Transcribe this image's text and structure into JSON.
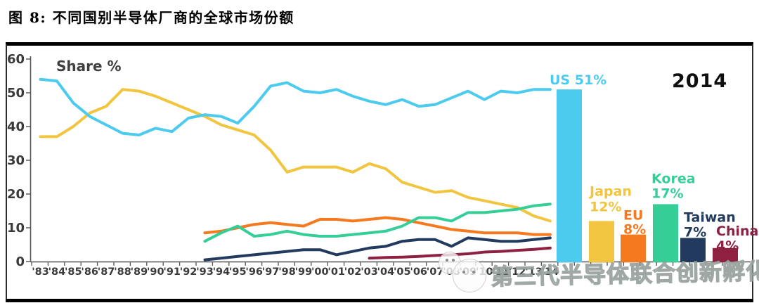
{
  "figure": {
    "caption": "图 8: 不同国别半导体厂商的全球市场份额",
    "watermark_text": "第三代半导体联合创新孵化中心"
  },
  "chart_data": {
    "type": "line+bar",
    "title": "不同国别半导体厂商的全球市场份额",
    "ylabel": "Share %",
    "xlabel": "",
    "annotation": "2014",
    "ylim": [
      0,
      60
    ],
    "yticks": [
      0,
      10,
      20,
      30,
      40,
      50,
      60
    ],
    "grid": false,
    "x_labels": [
      "'83",
      "'84",
      "'85",
      "'86",
      "'87",
      "'88",
      "'89",
      "'90",
      "'91",
      "'92",
      "'93",
      "'94",
      "'95",
      "'96",
      "'97",
      "'98",
      "'99",
      "'00",
      "'01",
      "'02",
      "'03",
      "'04",
      "'05",
      "'06",
      "'07",
      "'08",
      "'09",
      "'10",
      "'11",
      "'12",
      "'13",
      "'14"
    ],
    "series": [
      {
        "name": "US",
        "color": "#4CCBEE",
        "start_year": 1983,
        "values": [
          54,
          53.5,
          47,
          43,
          40.5,
          38,
          37.5,
          39.5,
          38.5,
          42.5,
          43.5,
          43,
          41,
          46,
          52,
          53,
          50.5,
          50,
          51,
          49,
          47.5,
          46.5,
          48,
          46,
          46.5,
          48.5,
          50.5,
          48,
          50.5,
          50,
          51,
          51
        ],
        "bar": {
          "value": 51,
          "label_lines": [
            "US 51%"
          ]
        }
      },
      {
        "name": "Japan",
        "color": "#F1C53F",
        "start_year": 1983,
        "values": [
          37,
          37,
          40,
          44,
          46,
          51,
          50.5,
          49,
          47,
          45,
          43,
          40.5,
          39,
          37.5,
          33,
          26.5,
          28,
          28,
          28,
          26.5,
          29,
          27.5,
          23.5,
          22,
          20.5,
          21,
          19,
          18,
          17,
          16,
          13.5,
          12
        ],
        "bar": {
          "value": 12,
          "label_lines": [
            "Japan",
            "12%"
          ]
        }
      },
      {
        "name": "EU",
        "color": "#F5791E",
        "start_year": 1993,
        "values": [
          8.5,
          9,
          10,
          11,
          11.5,
          11,
          10.5,
          12.5,
          12.5,
          12,
          12.5,
          13,
          12.5,
          11.5,
          10.5,
          9.5,
          9,
          8.5,
          8.5,
          8.5,
          8,
          8
        ],
        "bar": {
          "value": 8,
          "label_lines": [
            "EU",
            "8%"
          ]
        }
      },
      {
        "name": "Korea",
        "color": "#36CE97",
        "start_year": 1993,
        "values": [
          6,
          8.5,
          10.5,
          7.5,
          8,
          9,
          8,
          7.5,
          7.5,
          8,
          8.5,
          9,
          10.5,
          13,
          13,
          12,
          14.5,
          14.5,
          15,
          15.5,
          16.5,
          17
        ],
        "bar": {
          "value": 17,
          "label_lines": [
            "Korea",
            "17%"
          ]
        }
      },
      {
        "name": "Taiwan",
        "color": "#223A5E",
        "start_year": 1993,
        "values": [
          0.5,
          1,
          1.5,
          2,
          2.5,
          3,
          3.5,
          3.5,
          2,
          3,
          4,
          4.5,
          6,
          6.5,
          6.5,
          4.5,
          7,
          6.5,
          6,
          6,
          6.5,
          7
        ],
        "bar": {
          "value": 7,
          "label_lines": [
            "Taiwan",
            "7%"
          ]
        }
      },
      {
        "name": "China",
        "color": "#8E2142",
        "start_year": 2003,
        "values": [
          1,
          1.2,
          1.3,
          1.5,
          1.8,
          2,
          2.3,
          2.8,
          3,
          3.3,
          3.6,
          4
        ],
        "bar": {
          "value": 4,
          "label_lines": [
            "China",
            "4%"
          ]
        }
      }
    ]
  }
}
